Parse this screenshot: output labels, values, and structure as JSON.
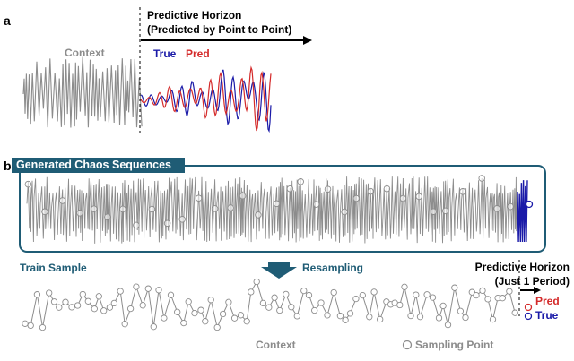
{
  "panel_a": {
    "label": "a",
    "context_label": "Context",
    "horizon_title": "Predictive Horizon",
    "horizon_subtitle": "(Predicted by Point to Point)",
    "legend_true": "True",
    "legend_pred": "Pred"
  },
  "panel_b": {
    "label": "b",
    "banner": "Generated Chaos Sequences",
    "train_sample": "Train Sample",
    "resampling": "Resampling",
    "horizon_title": "Predictive Horizon",
    "horizon_subtitle": "(Just 1 Period)",
    "legend_pred": "Pred",
    "legend_true": "True",
    "context_label": "Context",
    "sampling_point": "Sampling Point"
  },
  "colors": {
    "context": "#8c8c8c",
    "true": "#1a1aa8",
    "pred": "#d42a2a",
    "banner": "#1f5c75",
    "box_border": "#1f5c75",
    "arrow": "#1f5c75"
  }
}
